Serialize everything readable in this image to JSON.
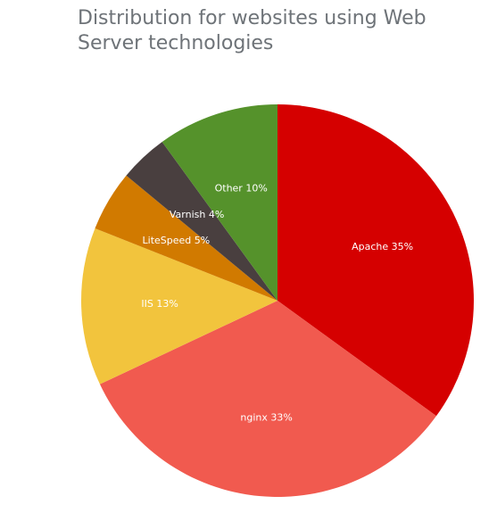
{
  "chart_data": {
    "type": "pie",
    "title": "Distribution for websites using Web Server technologies",
    "slices": [
      {
        "name": "Apache",
        "label": "Apache 35%",
        "value": 35,
        "color": "#d50000"
      },
      {
        "name": "nginx",
        "label": "nginx 33%",
        "value": 33,
        "color": "#f15a4f"
      },
      {
        "name": "IIS",
        "label": "IIS 13%",
        "value": 13,
        "color": "#f2c43d"
      },
      {
        "name": "LiteSpeed",
        "label": "LiteSpeed 5%",
        "value": 5,
        "color": "#d17a00"
      },
      {
        "name": "Varnish",
        "label": "Varnish 4%",
        "value": 4,
        "color": "#493f3f"
      },
      {
        "name": "Other",
        "label": "Other 10%",
        "value": 10,
        "color": "#55922b"
      }
    ],
    "legend": "none"
  }
}
